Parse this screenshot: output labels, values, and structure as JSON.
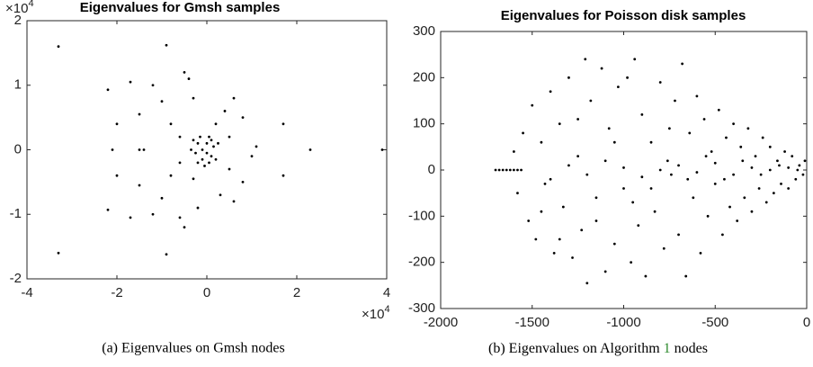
{
  "chart_data": [
    {
      "type": "scatter",
      "title": "Eigenvalues for Gmsh samples",
      "caption": "(a) Eigenvalues on Gmsh nodes",
      "y_exponent": [
        "×10",
        "4"
      ],
      "x_exponent": [
        "×10",
        "4"
      ],
      "xlim": [
        -4,
        4
      ],
      "xticks": [
        -4,
        -2,
        0,
        2,
        4
      ],
      "ylim": [
        -2,
        2
      ],
      "yticks": [
        -2,
        -1,
        0,
        1,
        2
      ],
      "color": "#000000",
      "x": [
        -3.3,
        -3.3,
        -0.9,
        -0.9,
        -2.2,
        -2.2,
        3.9,
        2.3,
        1.7,
        1.7,
        -2.1,
        -1.5,
        -1.4,
        -2.0,
        -2.0,
        -1.7,
        -1.7,
        -1.2,
        -1.2,
        -1.5,
        -1.5,
        -0.5,
        -0.5,
        -0.4,
        -0.6,
        -1.0,
        -1.0,
        0.6,
        0.6,
        0.8,
        0.8,
        1.1,
        1.0,
        -0.8,
        -0.8,
        0.4,
        0.3,
        -0.3,
        -0.2,
        0.5,
        0.5,
        -0.6,
        -0.6,
        0.2,
        -0.3,
        -0.1,
        0,
        -0.2,
        0.1,
        -0.1,
        0.05,
        -0.25,
        0.15,
        -0.05,
        0.2,
        -0.3,
        0.1,
        -0.15,
        0,
        -0.2,
        0.25,
        -0.35,
        0.05
      ],
      "values": [
        1.6,
        -1.6,
        1.62,
        -1.62,
        0.93,
        -0.93,
        0,
        0,
        0.4,
        -0.4,
        0,
        0,
        0,
        0.4,
        -0.4,
        1.05,
        -1.05,
        1.0,
        -1.0,
        0.55,
        -0.55,
        1.2,
        -1.2,
        1.1,
        -1.05,
        0.75,
        -0.75,
        0.8,
        -0.8,
        0.5,
        -0.5,
        0.05,
        -0.1,
        0.4,
        -0.4,
        0.6,
        -0.7,
        0.8,
        -0.9,
        0.2,
        -0.3,
        0.2,
        -0.2,
        0.4,
        -0.45,
        0,
        0.1,
        0.1,
        -0.1,
        -0.15,
        0.2,
        -0.05,
        0.05,
        -0.25,
        -0.15,
        0.15,
        0.15,
        0.2,
        -0.05,
        -0.2,
        0.1,
        0,
        -0.2
      ]
    },
    {
      "type": "scatter",
      "title": "Eigenvalues for Poisson disk samples",
      "caption": [
        "(b) Eigenvalues on Algorithm ",
        "1",
        " nodes"
      ],
      "xlim": [
        -2000,
        0
      ],
      "xticks": [
        -2000,
        -1500,
        -1000,
        -500,
        0
      ],
      "ylim": [
        -300,
        300
      ],
      "yticks": [
        -300,
        -200,
        -100,
        0,
        100,
        200,
        300
      ],
      "color": "#000000",
      "x": [
        -1700,
        -1680,
        -1660,
        -1640,
        -1620,
        -1600,
        -1580,
        -1560,
        -1600,
        -1580,
        -1550,
        -1520,
        -1500,
        -1480,
        -1450,
        -1430,
        -1400,
        -1380,
        -1350,
        -1330,
        -1300,
        -1280,
        -1250,
        -1230,
        -1210,
        -1200,
        -1180,
        -1150,
        -1120,
        -1100,
        -1080,
        -1050,
        -1030,
        -1000,
        -980,
        -960,
        -940,
        -920,
        -900,
        -880,
        -850,
        -830,
        -800,
        -780,
        -760,
        -740,
        -720,
        -700,
        -680,
        -660,
        -640,
        -620,
        -600,
        -580,
        -560,
        -540,
        -520,
        -500,
        -480,
        -460,
        -440,
        -420,
        -400,
        -380,
        -360,
        -340,
        -320,
        -300,
        -280,
        -260,
        -240,
        -220,
        -200,
        -180,
        -160,
        -140,
        -120,
        -100,
        -80,
        -60,
        -40,
        -20,
        -1400,
        -1300,
        -1200,
        -1100,
        -1000,
        -900,
        -800,
        -700,
        -600,
        -500,
        -400,
        -300,
        -200,
        -100,
        -1450,
        -1350,
        -1250,
        -1150,
        -1050,
        -950,
        -850,
        -750,
        -650,
        -550,
        -450,
        -350,
        -250,
        -150,
        -50,
        -10
      ],
      "values": [
        0,
        0,
        0,
        0,
        0,
        0,
        0,
        0,
        40,
        -50,
        80,
        -110,
        140,
        -150,
        60,
        -30,
        170,
        -180,
        100,
        -80,
        200,
        -190,
        30,
        -130,
        240,
        -245,
        150,
        -60,
        220,
        -220,
        90,
        -160,
        180,
        -40,
        200,
        -200,
        240,
        -120,
        120,
        -230,
        60,
        -90,
        190,
        -170,
        20,
        -10,
        150,
        -140,
        230,
        -230,
        80,
        -60,
        160,
        -180,
        110,
        -100,
        40,
        -30,
        130,
        -140,
        70,
        -80,
        100,
        -110,
        50,
        -60,
        90,
        -90,
        30,
        -40,
        70,
        -70,
        50,
        -50,
        20,
        -30,
        40,
        -40,
        30,
        -20,
        10,
        -10,
        -20,
        10,
        -10,
        20,
        5,
        -15,
        0,
        10,
        -5,
        15,
        -10,
        5,
        0,
        5,
        -90,
        -150,
        110,
        -110,
        60,
        -70,
        -40,
        90,
        -20,
        30,
        -20,
        20,
        -10,
        10,
        0,
        20
      ]
    }
  ]
}
